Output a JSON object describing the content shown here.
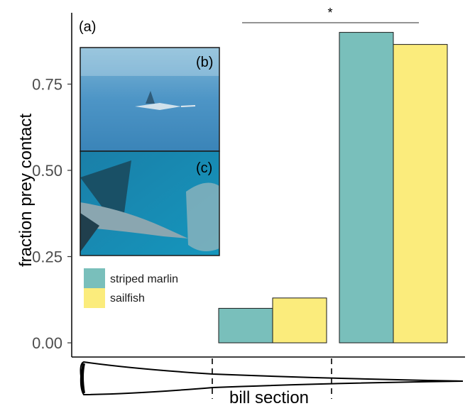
{
  "chart_data": {
    "type": "bar",
    "categories": [
      "",
      ""
    ],
    "series": [
      {
        "name": "striped marlin",
        "values": [
          0.1,
          0.9
        ],
        "color": "#79bfbb"
      },
      {
        "name": "sailfish",
        "values": [
          0.13,
          0.865
        ],
        "color": "#fbec7c"
      }
    ],
    "xlabel": "bill section",
    "ylabel": "fraction prey contact",
    "ylim": [
      0,
      0.9
    ],
    "yticks": [
      "0.00",
      "0.25",
      "0.50",
      "0.75"
    ],
    "ytick_values": [
      0,
      0.25,
      0.5,
      0.75
    ],
    "grid": false,
    "legend_placement": "bottom-left",
    "panel_labels": [
      "(a)",
      "(b)",
      "(c)"
    ],
    "significance_marker": "*"
  }
}
